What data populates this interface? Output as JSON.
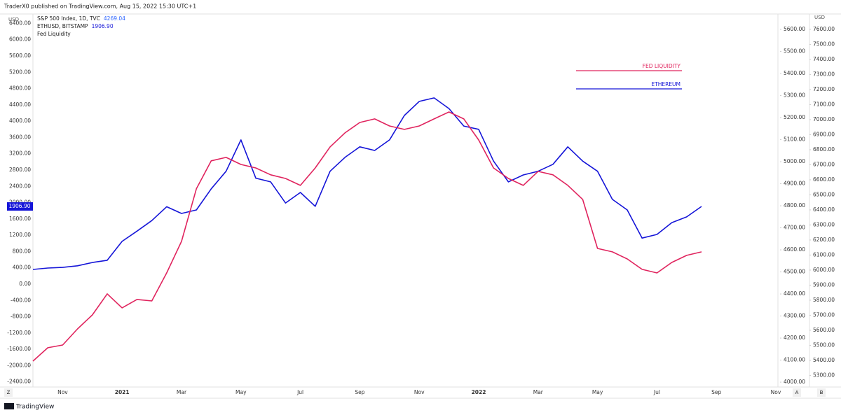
{
  "header": "TraderX0 published on TradingView.com, Aug 15, 2022 15:30 UTC+1",
  "footer": "TradingView",
  "scale_buttons": [
    "Z",
    "A",
    "B"
  ],
  "chart_data": {
    "type": "line",
    "legend": [
      {
        "name": "S&P 500 Index, 1D, TVC",
        "value": "4269.04"
      },
      {
        "name": "ETHUSD, BITSTAMP",
        "value": "1906.90"
      },
      {
        "name": "Fed Liquidity"
      }
    ],
    "y_unit": "USD",
    "y3_unit": "USD",
    "categories": [
      null,
      null,
      "Nov",
      null,
      null,
      null,
      "2021",
      null,
      null,
      null,
      "Mar",
      null,
      null,
      null,
      "May",
      null,
      null,
      null,
      "Jul",
      null,
      null,
      null,
      "Sep",
      null,
      null,
      null,
      "Nov",
      null,
      null,
      null,
      "2022",
      null,
      null,
      null,
      "Mar",
      null,
      null,
      null,
      "May",
      null,
      null,
      null,
      "Jul",
      null,
      null,
      null,
      "Sep",
      null,
      null,
      null,
      "Nov"
    ],
    "series": [
      {
        "name": "ETHEREUM",
        "color": "#1515d8",
        "axis": "y",
        "values": [
          360,
          395,
          410,
          450,
          530,
          585,
          1050,
          1300,
          1560,
          1900,
          1735,
          1820,
          2340,
          2770,
          3540,
          2600,
          2510,
          1990,
          2250,
          1910,
          2770,
          3110,
          3370,
          3280,
          3540,
          4140,
          4485,
          4570,
          4310,
          3880,
          3800,
          3020,
          2510,
          2680,
          2770,
          2940,
          3370,
          3020,
          2770,
          2080,
          1820,
          1130,
          1220,
          1510,
          1650,
          1906.9,
          null,
          null,
          null,
          null,
          null
        ]
      },
      {
        "name": "FED LIQUIDITY",
        "color": "#e0245e",
        "axis": "y3",
        "values": [
          5395,
          5484,
          5502,
          5609,
          5702,
          5842,
          5749,
          5805,
          5795,
          5981,
          6191,
          6540,
          6726,
          6749,
          6702,
          6679,
          6633,
          6609,
          6563,
          6679,
          6819,
          6912,
          6981,
          7005,
          6958,
          6935,
          6958,
          7005,
          7051,
          7005,
          6865,
          6679,
          6609,
          6563,
          6656,
          6633,
          6563,
          6470,
          6144,
          6121,
          6074,
          6005,
          5981,
          6051,
          6098,
          6121,
          null,
          null,
          null,
          null,
          null
        ]
      }
    ],
    "ylim": [
      -2525,
      6630
    ],
    "yticks": [
      {
        "value": -2400,
        "label": "-2400.00"
      },
      {
        "value": -2000,
        "label": "-2000.00"
      },
      {
        "value": -1600,
        "label": "-1600.00"
      },
      {
        "value": -1200,
        "label": "-1200.00"
      },
      {
        "value": -800,
        "label": "-800.00"
      },
      {
        "value": -400,
        "label": "-400.00"
      },
      {
        "value": 0,
        "label": "0.00"
      },
      {
        "value": 400,
        "label": "400.00"
      },
      {
        "value": 800,
        "label": "800.00"
      },
      {
        "value": 1200,
        "label": "1200.00"
      },
      {
        "value": 1600,
        "label": "1600.00"
      },
      {
        "value": 2000,
        "label": "2000.00"
      },
      {
        "value": 2400,
        "label": "2400.00"
      },
      {
        "value": 2800,
        "label": "2800.00"
      },
      {
        "value": 3200,
        "label": "3200.00"
      },
      {
        "value": 3600,
        "label": "3600.00"
      },
      {
        "value": 4000,
        "label": "4000.00"
      },
      {
        "value": 4400,
        "label": "4400.00"
      },
      {
        "value": 4800,
        "label": "4800.00"
      },
      {
        "value": 5200,
        "label": "5200.00"
      },
      {
        "value": 5600,
        "label": "5600.00"
      },
      {
        "value": 6000,
        "label": "6000.00"
      },
      {
        "value": 6400,
        "label": "6400.00"
      }
    ],
    "y2lim": [
      3978,
      5670
    ],
    "y2ticks": [
      {
        "value": 4000,
        "label": "4000.00"
      },
      {
        "value": 4100,
        "label": "4100.00"
      },
      {
        "value": 4200,
        "label": "4200.00"
      },
      {
        "value": 4300,
        "label": "4300.00"
      },
      {
        "value": 4400,
        "label": "4400.00"
      },
      {
        "value": 4500,
        "label": "4500.00"
      },
      {
        "value": 4600,
        "label": "4600.00"
      },
      {
        "value": 4700,
        "label": "4700.00"
      },
      {
        "value": 4800,
        "label": "4800.00"
      },
      {
        "value": 4900,
        "label": "4900.00"
      },
      {
        "value": 5000,
        "label": "5000.00"
      },
      {
        "value": 5100,
        "label": "5100.00"
      },
      {
        "value": 5200,
        "label": "5200.00"
      },
      {
        "value": 5300,
        "label": "5300.00"
      },
      {
        "value": 5400,
        "label": "5400.00"
      },
      {
        "value": 5500,
        "label": "5500.00"
      },
      {
        "value": 5600,
        "label": "5600.00"
      }
    ],
    "y3lim": [
      5223,
      7702
    ],
    "y3ticks": [
      {
        "value": 5300,
        "label": "5300.00"
      },
      {
        "value": 5400,
        "label": "5400.00"
      },
      {
        "value": 5500,
        "label": "5500.00"
      },
      {
        "value": 5600,
        "label": "5600.00"
      },
      {
        "value": 5700,
        "label": "5700.00"
      },
      {
        "value": 5800,
        "label": "5800.00"
      },
      {
        "value": 5900,
        "label": "5900.00"
      },
      {
        "value": 6000,
        "label": "6000.00"
      },
      {
        "value": 6100,
        "label": "6100.00"
      },
      {
        "value": 6200,
        "label": "6200.00"
      },
      {
        "value": 6300,
        "label": "6300.00"
      },
      {
        "value": 6400,
        "label": "6400.00"
      },
      {
        "value": 6500,
        "label": "6500.00"
      },
      {
        "value": 6600,
        "label": "6600.00"
      },
      {
        "value": 6700,
        "label": "6700.00"
      },
      {
        "value": 6800,
        "label": "6800.00"
      },
      {
        "value": 6900,
        "label": "6900.00"
      },
      {
        "value": 7000,
        "label": "7000.00"
      },
      {
        "value": 7100,
        "label": "7100.00"
      },
      {
        "value": 7200,
        "label": "7200.00"
      },
      {
        "value": 7300,
        "label": "7300.00"
      },
      {
        "value": 7400,
        "label": "7400.00"
      },
      {
        "value": 7500,
        "label": "7500.00"
      },
      {
        "value": 7600,
        "label": "7600.00"
      }
    ]
  }
}
